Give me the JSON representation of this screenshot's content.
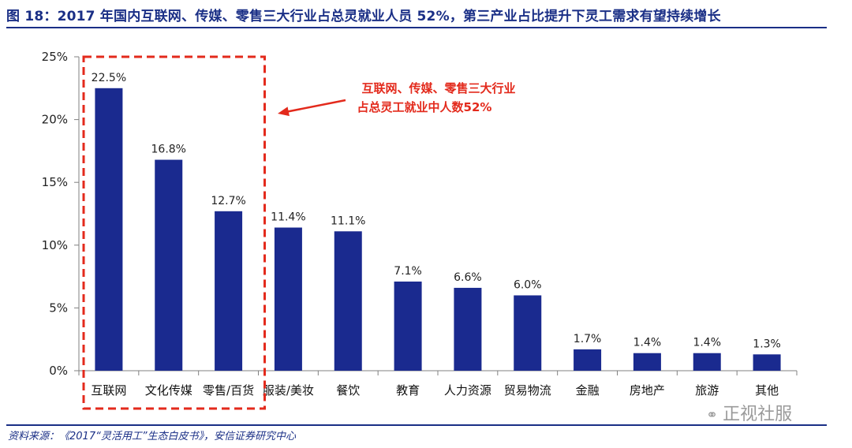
{
  "title": "图 18：2017 年国内互联网、传媒、零售三大行业占总灵就业人员 52%，第三产业占比提升下灵工需求有望持续增长",
  "source": "资料来源：《2017“灵活用工”生态白皮书》，安信证券研究中心",
  "watermark": "正视社服",
  "chart_data": {
    "type": "bar",
    "categories": [
      "互联网",
      "文化传媒",
      "零售/百货",
      "服装/美妆",
      "餐饮",
      "教育",
      "人力资源",
      "贸易物流",
      "金融",
      "房地产",
      "旅游",
      "其他"
    ],
    "values": [
      22.5,
      16.8,
      12.7,
      11.4,
      11.1,
      7.1,
      6.6,
      6.0,
      1.7,
      1.4,
      1.4,
      1.3
    ],
    "value_labels": [
      "22.5%",
      "16.8%",
      "12.7%",
      "11.4%",
      "11.1%",
      "7.1%",
      "6.6%",
      "6.0%",
      "1.7%",
      "1.4%",
      "1.4%",
      "1.3%"
    ],
    "yticks": [
      "0%",
      "5%",
      "10%",
      "15%",
      "20%",
      "25%"
    ],
    "ylim": [
      0,
      25
    ],
    "bar_color": "#1a2a8f",
    "grid": false,
    "annotation": {
      "lines": [
        "互联网、传媒、零售三大行业",
        "占总灵工就业中人数52%"
      ],
      "color": "#e32a1c",
      "highlighted_categories": [
        "互联网",
        "文化传媒",
        "零售/百货"
      ]
    }
  }
}
